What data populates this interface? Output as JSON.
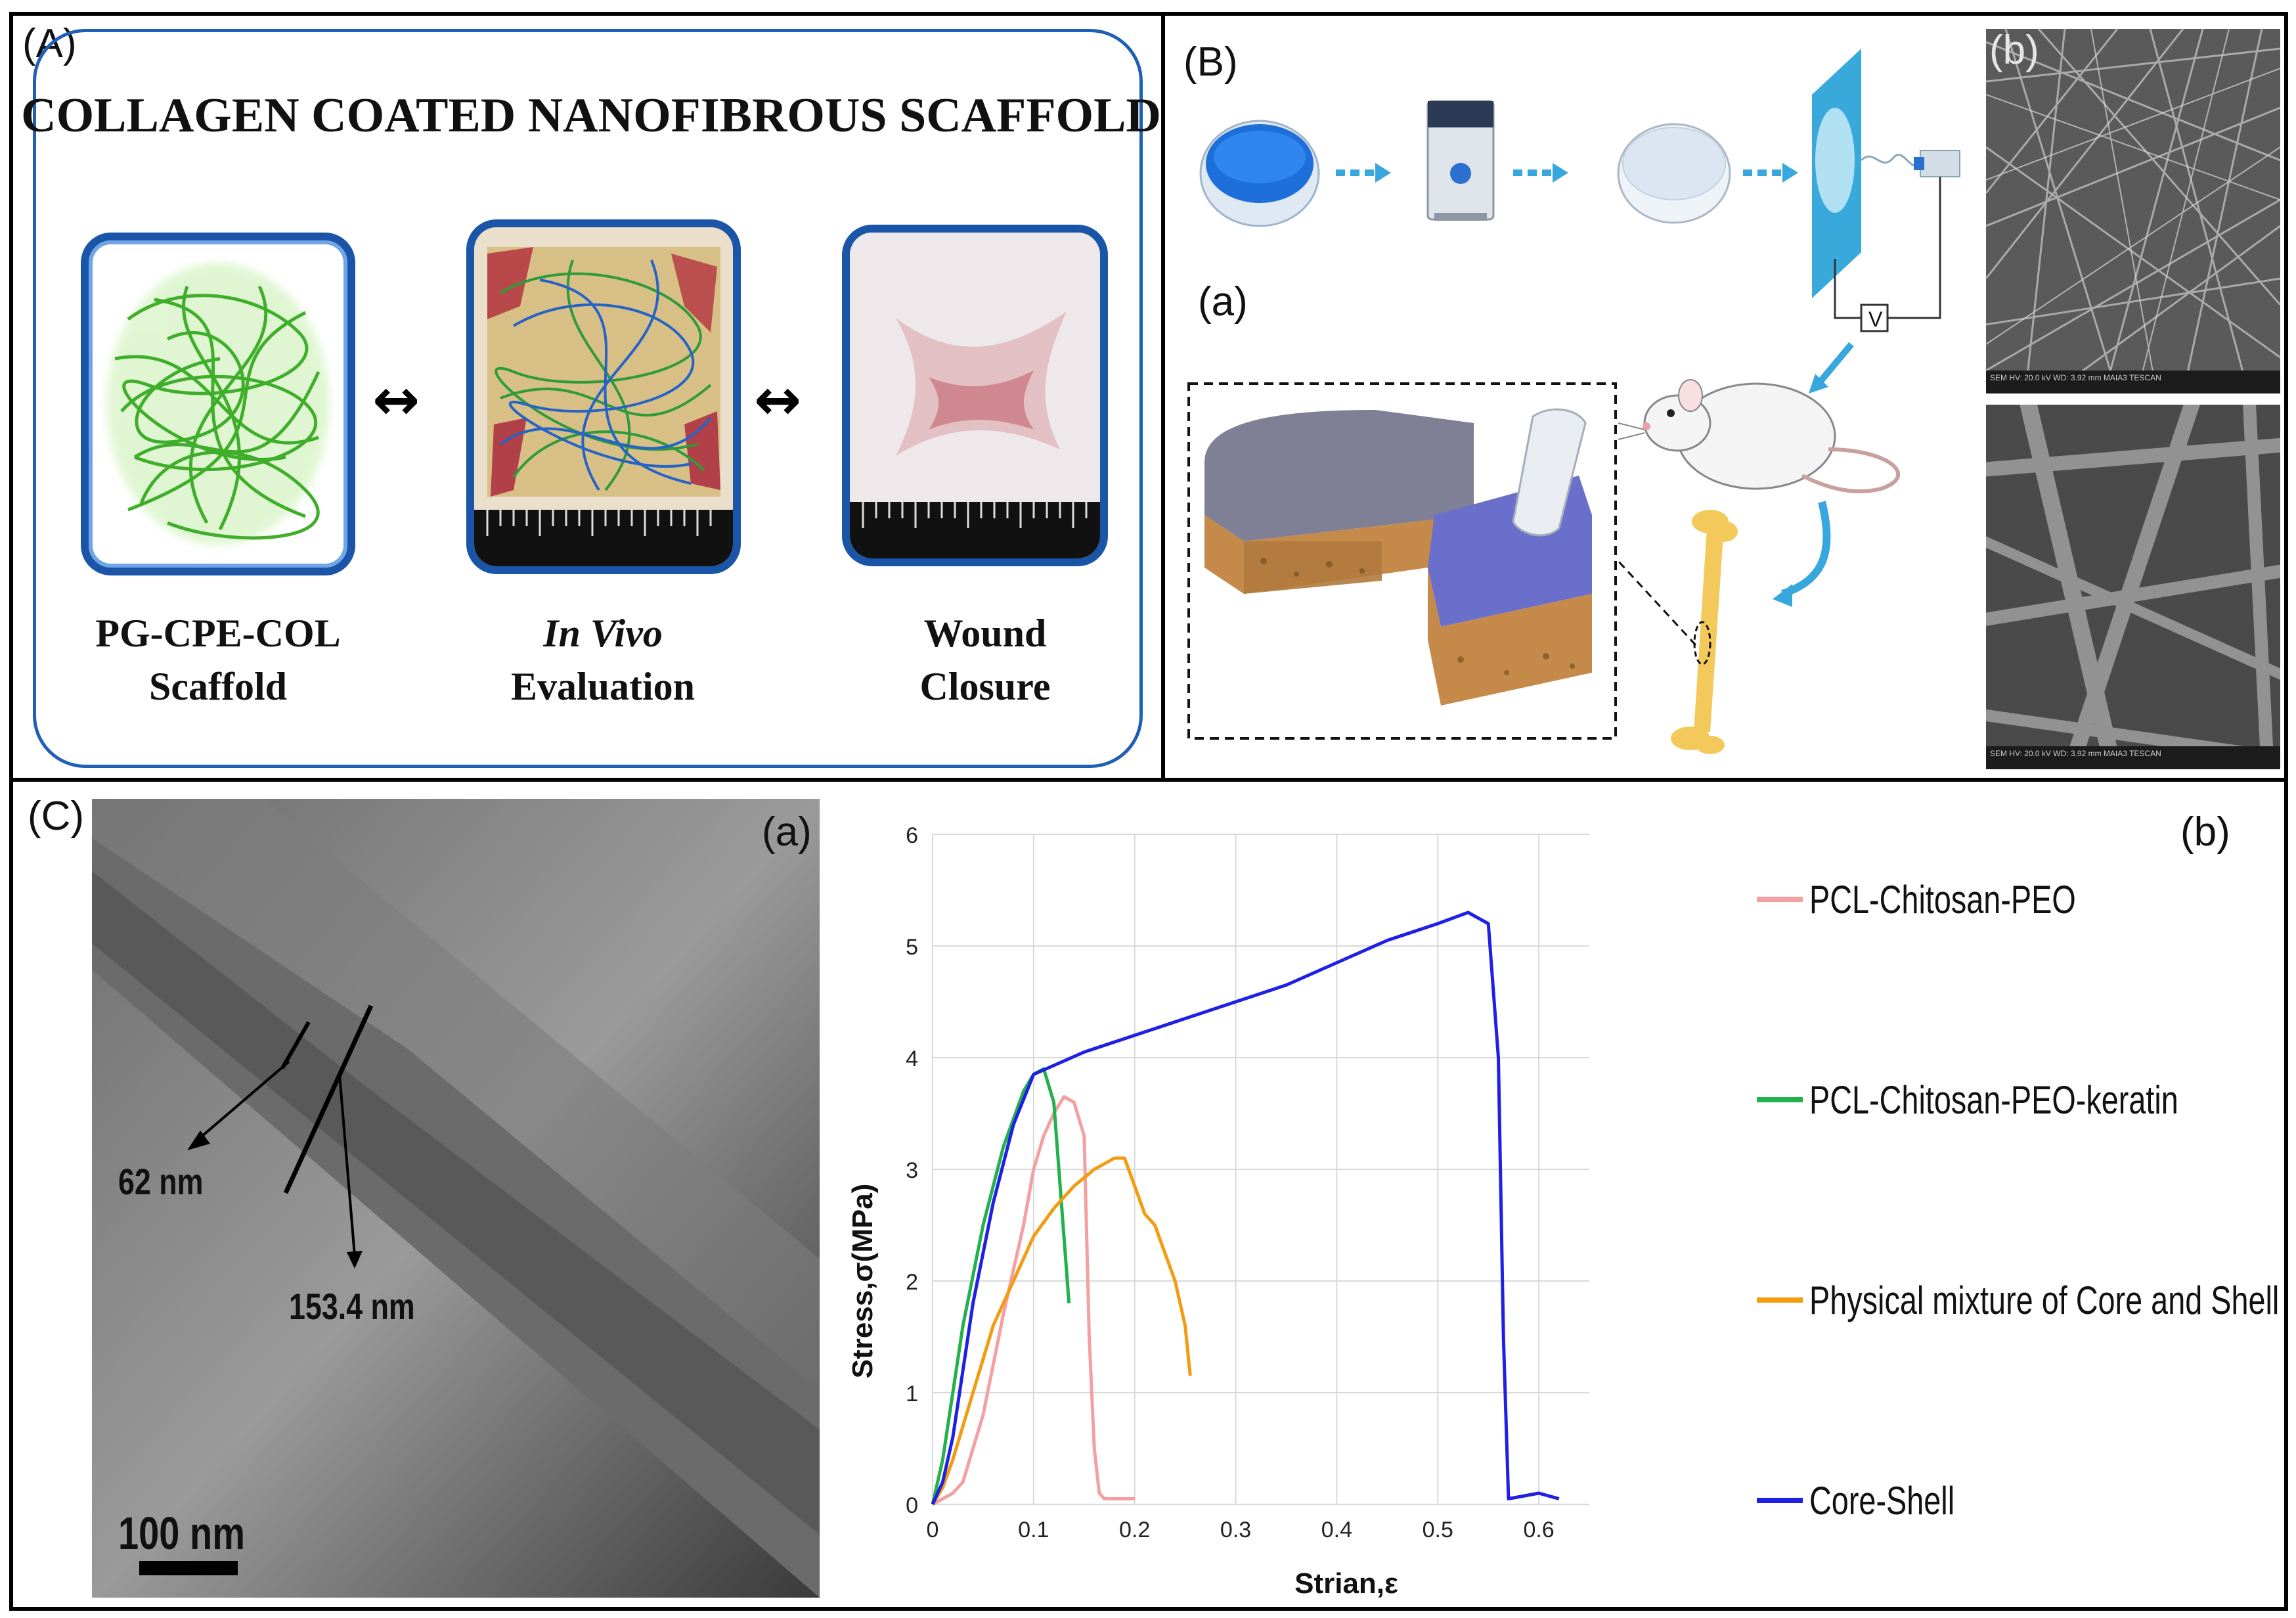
{
  "panelA": {
    "label": "(A)",
    "title": "COLLAGEN COATED  NANOFIBROUS SCAFFOLD",
    "arrow": "↔",
    "captions": [
      {
        "line1": "PG-CPE-COL",
        "line2": "Scaffold"
      },
      {
        "line1": "In Vivo",
        "line2": "Evaluation"
      },
      {
        "line1": "Wound",
        "line2": "Closure"
      }
    ]
  },
  "panelB": {
    "label": "(B)",
    "sub_a": "(a)",
    "sub_b": "(b)",
    "voltage": "V",
    "sem_top_caption": "SEM HV: 20.0 kV   WD: 3.92 mm   MAIA3 TESCAN",
    "sem_bottom_caption": "SEM HV: 20.0 kV   WD: 3.92 mm   MAIA3 TESCAN"
  },
  "panelC": {
    "label": "(C)",
    "sub_a": "(a)",
    "sub_b": "(b)",
    "tem": {
      "shell_label": "62 nm",
      "core_label": "153.4 nm",
      "scalebar": "100 nm"
    }
  },
  "colors": {
    "pcl_chitosan_peo": "#f4a0a0",
    "keratin": "#22b14c",
    "mixture": "#f39c12",
    "core_shell": "#1f1fe6",
    "frame_blue": "#1f5fb5"
  },
  "chart_data": {
    "type": "line",
    "title": "",
    "xlabel": "Strian,ε",
    "ylabel": "Stress,σ(MPa)",
    "xlim": [
      0,
      0.65
    ],
    "ylim": [
      0,
      6
    ],
    "xticks": [
      "0",
      "0.1",
      "0.2",
      "0.3",
      "0.4",
      "0.5",
      "0.6"
    ],
    "yticks": [
      "0",
      "1",
      "2",
      "3",
      "4",
      "5",
      "6"
    ],
    "grid": true,
    "legend_position": "right",
    "series": [
      {
        "name": "PCL-Chitosan-PEO",
        "color": "#f4a0a0",
        "x": [
          0,
          0.02,
          0.03,
          0.05,
          0.07,
          0.09,
          0.1,
          0.11,
          0.12,
          0.13,
          0.14,
          0.15,
          0.155,
          0.16,
          0.165,
          0.17,
          0.2
        ],
        "y": [
          0,
          0.1,
          0.2,
          0.8,
          1.7,
          2.5,
          3.0,
          3.3,
          3.5,
          3.65,
          3.6,
          3.3,
          1.5,
          0.5,
          0.1,
          0.05,
          0.05
        ]
      },
      {
        "name": "PCL-Chitosan-PEO-keratin",
        "color": "#22b14c",
        "x": [
          0,
          0.01,
          0.02,
          0.03,
          0.05,
          0.07,
          0.09,
          0.1,
          0.11,
          0.12,
          0.125,
          0.13,
          0.135
        ],
        "y": [
          0,
          0.4,
          1.0,
          1.6,
          2.5,
          3.2,
          3.7,
          3.85,
          3.9,
          3.6,
          3.0,
          2.4,
          1.8
        ]
      },
      {
        "name": "Physical mixture of Core and Shell",
        "color": "#f39c12",
        "x": [
          0,
          0.01,
          0.02,
          0.04,
          0.06,
          0.08,
          0.1,
          0.12,
          0.14,
          0.16,
          0.18,
          0.19,
          0.2,
          0.21,
          0.22,
          0.23,
          0.24,
          0.25,
          0.255
        ],
        "y": [
          0,
          0.15,
          0.4,
          1.0,
          1.6,
          2.0,
          2.4,
          2.65,
          2.85,
          3.0,
          3.1,
          3.1,
          2.85,
          2.6,
          2.5,
          2.25,
          2.0,
          1.6,
          1.15
        ]
      },
      {
        "name": "Core-Shell",
        "color": "#1f1fe6",
        "x": [
          0,
          0.01,
          0.02,
          0.03,
          0.04,
          0.06,
          0.08,
          0.1,
          0.15,
          0.2,
          0.25,
          0.3,
          0.35,
          0.4,
          0.45,
          0.5,
          0.53,
          0.55,
          0.56,
          0.565,
          0.57,
          0.6,
          0.62
        ],
        "y": [
          0,
          0.2,
          0.6,
          1.2,
          1.8,
          2.7,
          3.4,
          3.85,
          4.05,
          4.2,
          4.35,
          4.5,
          4.65,
          4.85,
          5.05,
          5.2,
          5.3,
          5.2,
          4.0,
          1.5,
          0.05,
          0.1,
          0.05
        ]
      }
    ]
  }
}
